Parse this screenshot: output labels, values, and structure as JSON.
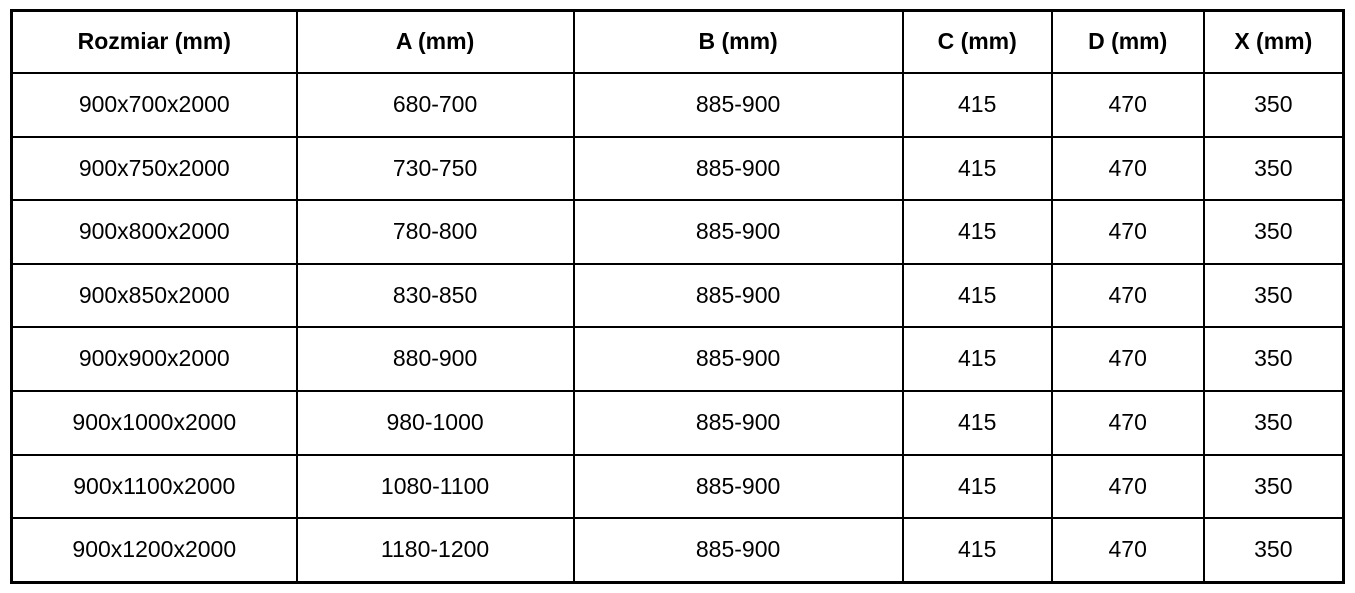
{
  "colors": {
    "border": "#000000",
    "background": "#ffffff",
    "text": "#000000"
  },
  "chart_data": {
    "type": "table",
    "columns": [
      "Rozmiar (mm)",
      "A (mm)",
      "B (mm)",
      "C (mm)",
      "D (mm)",
      "X (mm)"
    ],
    "rows": [
      [
        "900x700x2000",
        "680-700",
        "885-900",
        "415",
        "470",
        "350"
      ],
      [
        "900x750x2000",
        "730-750",
        "885-900",
        "415",
        "470",
        "350"
      ],
      [
        "900x800x2000",
        "780-800",
        "885-900",
        "415",
        "470",
        "350"
      ],
      [
        "900x850x2000",
        "830-850",
        "885-900",
        "415",
        "470",
        "350"
      ],
      [
        "900x900x2000",
        "880-900",
        "885-900",
        "415",
        "470",
        "350"
      ],
      [
        "900x1000x2000",
        "980-1000",
        "885-900",
        "415",
        "470",
        "350"
      ],
      [
        "900x1100x2000",
        "1080-1100",
        "885-900",
        "415",
        "470",
        "350"
      ],
      [
        "900x1200x2000",
        "1180-1200",
        "885-900",
        "415",
        "470",
        "350"
      ]
    ]
  }
}
